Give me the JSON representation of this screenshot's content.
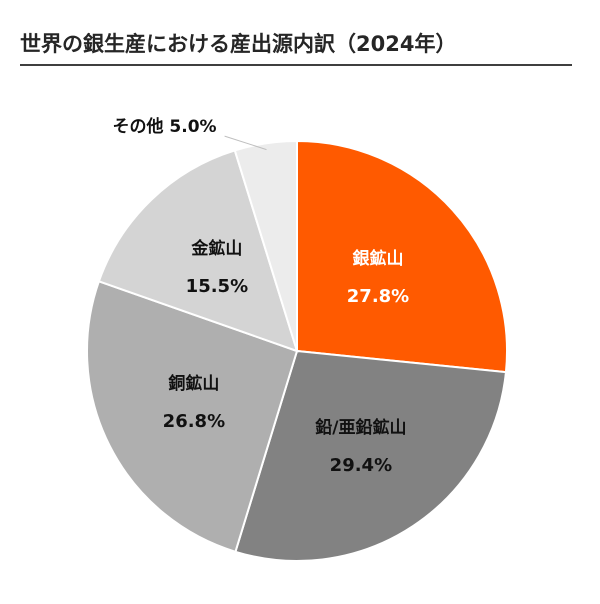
{
  "chart_data": {
    "type": "pie",
    "title": "世界の銀生産における産出源内訳（2024年）",
    "unit": "%",
    "slices": [
      {
        "name": "銀鉱山",
        "value": 27.8,
        "label": "27.8%",
        "color": "#ff5a00",
        "text_color": "#ffffff"
      },
      {
        "name": "鉛/亜鉛鉱山",
        "value": 29.4,
        "label": "29.4%",
        "color": "#828282",
        "text_color": "#111111"
      },
      {
        "name": "銅鉱山",
        "value": 26.8,
        "label": "26.8%",
        "color": "#afafaf",
        "text_color": "#111111"
      },
      {
        "name": "金鉱山",
        "value": 15.5,
        "label": "15.5%",
        "color": "#d4d4d4",
        "text_color": "#111111"
      },
      {
        "name": "その他",
        "value": 5.0,
        "label": "5.0%",
        "color": "#ececec",
        "text_color": "#111111"
      }
    ],
    "start_angle_deg": 0,
    "direction": "clockwise",
    "legend": "none"
  }
}
